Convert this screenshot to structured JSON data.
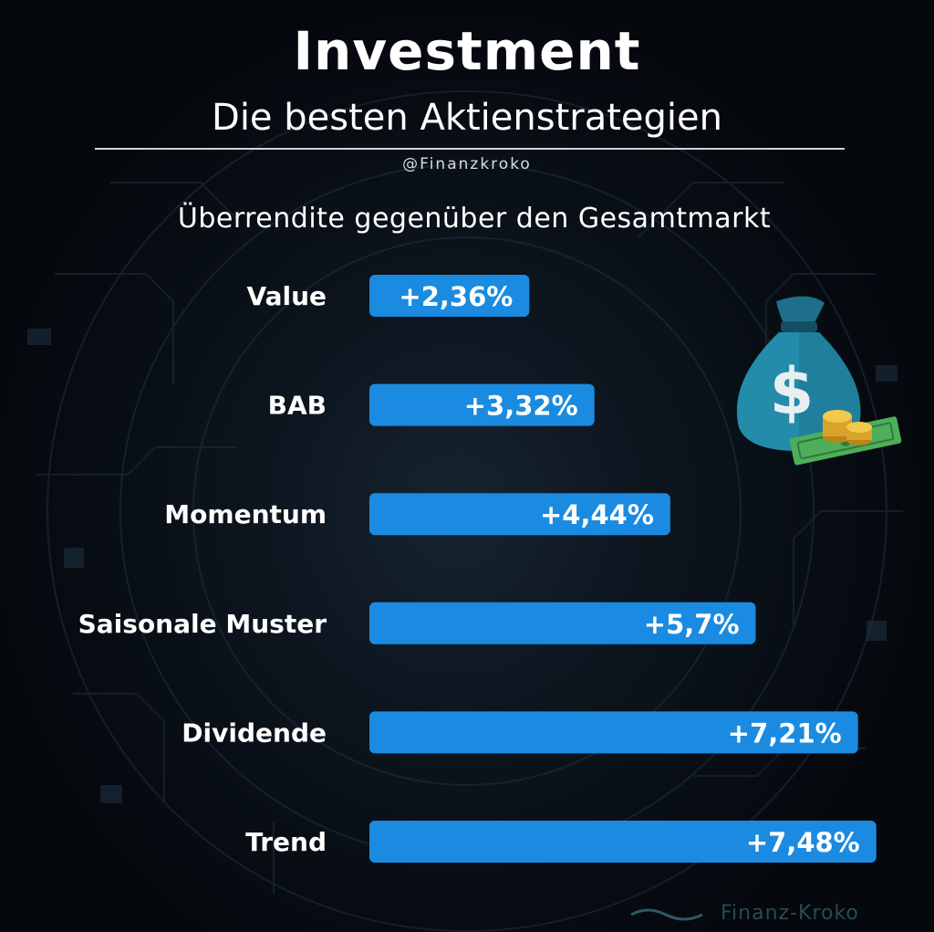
{
  "header": {
    "title": "Investment",
    "subtitle": "Die besten Aktienstrategien",
    "handle": "@Finanzkroko"
  },
  "chart_data": {
    "type": "bar",
    "orientation": "horizontal",
    "title": "Überrendite gegenüber den Gesamtmarkt",
    "xlabel": "",
    "ylabel": "",
    "unit": "%",
    "categories": [
      "Value",
      "BAB",
      "Momentum",
      "Saisonale Muster",
      "Dividende",
      "Trend"
    ],
    "values": [
      2.36,
      3.32,
      4.44,
      5.7,
      7.21,
      7.48
    ],
    "value_labels": [
      "+2,36%",
      "+3,32%",
      "+4,44%",
      "+5,7%",
      "+7,21%",
      "+7,48%"
    ],
    "grid": false,
    "legend": "none",
    "bar_color": "#1a8be0"
  },
  "decoration": {
    "icon": "money-bag-icon",
    "watermark": "Finanz-Kroko"
  },
  "colors": {
    "background": "#05080d",
    "bar": "#1a8be0",
    "text": "#ffffff"
  }
}
